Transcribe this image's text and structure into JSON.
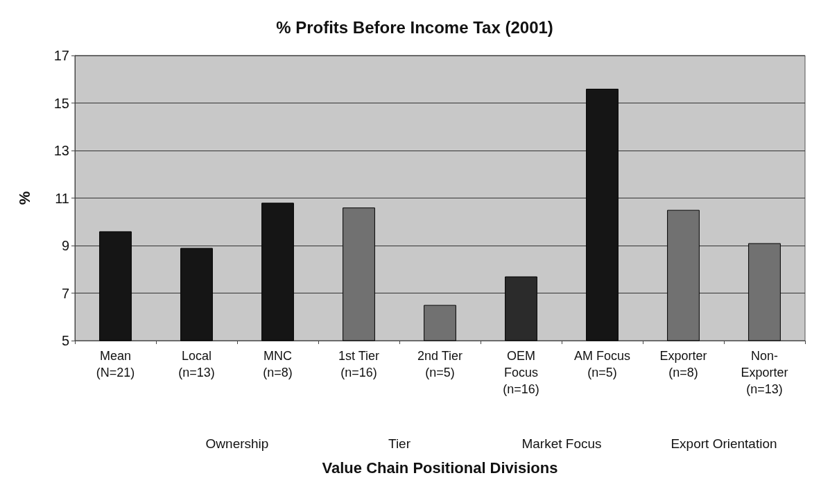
{
  "chart_data": {
    "type": "bar",
    "title": "% Profits Before Income Tax (2001)",
    "xlabel": "Value Chain Positional Divisions",
    "ylabel": "%",
    "categories": [
      "Mean\n(N=21)",
      "Local\n(n=13)",
      "MNC\n(n=8)",
      "1st Tier\n(n=16)",
      "2nd Tier\n(n=5)",
      "OEM\nFocus\n(n=16)",
      "AM Focus\n(n=5)",
      "Exporter\n(n=8)",
      "Non-\nExporter\n(n=13)"
    ],
    "values": [
      9.6,
      8.9,
      10.8,
      10.6,
      6.5,
      7.7,
      15.6,
      10.5,
      9.1
    ],
    "colors": [
      "#151515",
      "#151515",
      "#151515",
      "#717171",
      "#717171",
      "#2b2b2b",
      "#151515",
      "#717171",
      "#717171"
    ],
    "annotations": [
      "Ownership",
      "Tier",
      "Market Focus",
      "Export Orientation"
    ],
    "ylim": [
      5,
      17
    ],
    "yticks": [
      5,
      7,
      9,
      11,
      13,
      15,
      17
    ],
    "grid": "y"
  }
}
